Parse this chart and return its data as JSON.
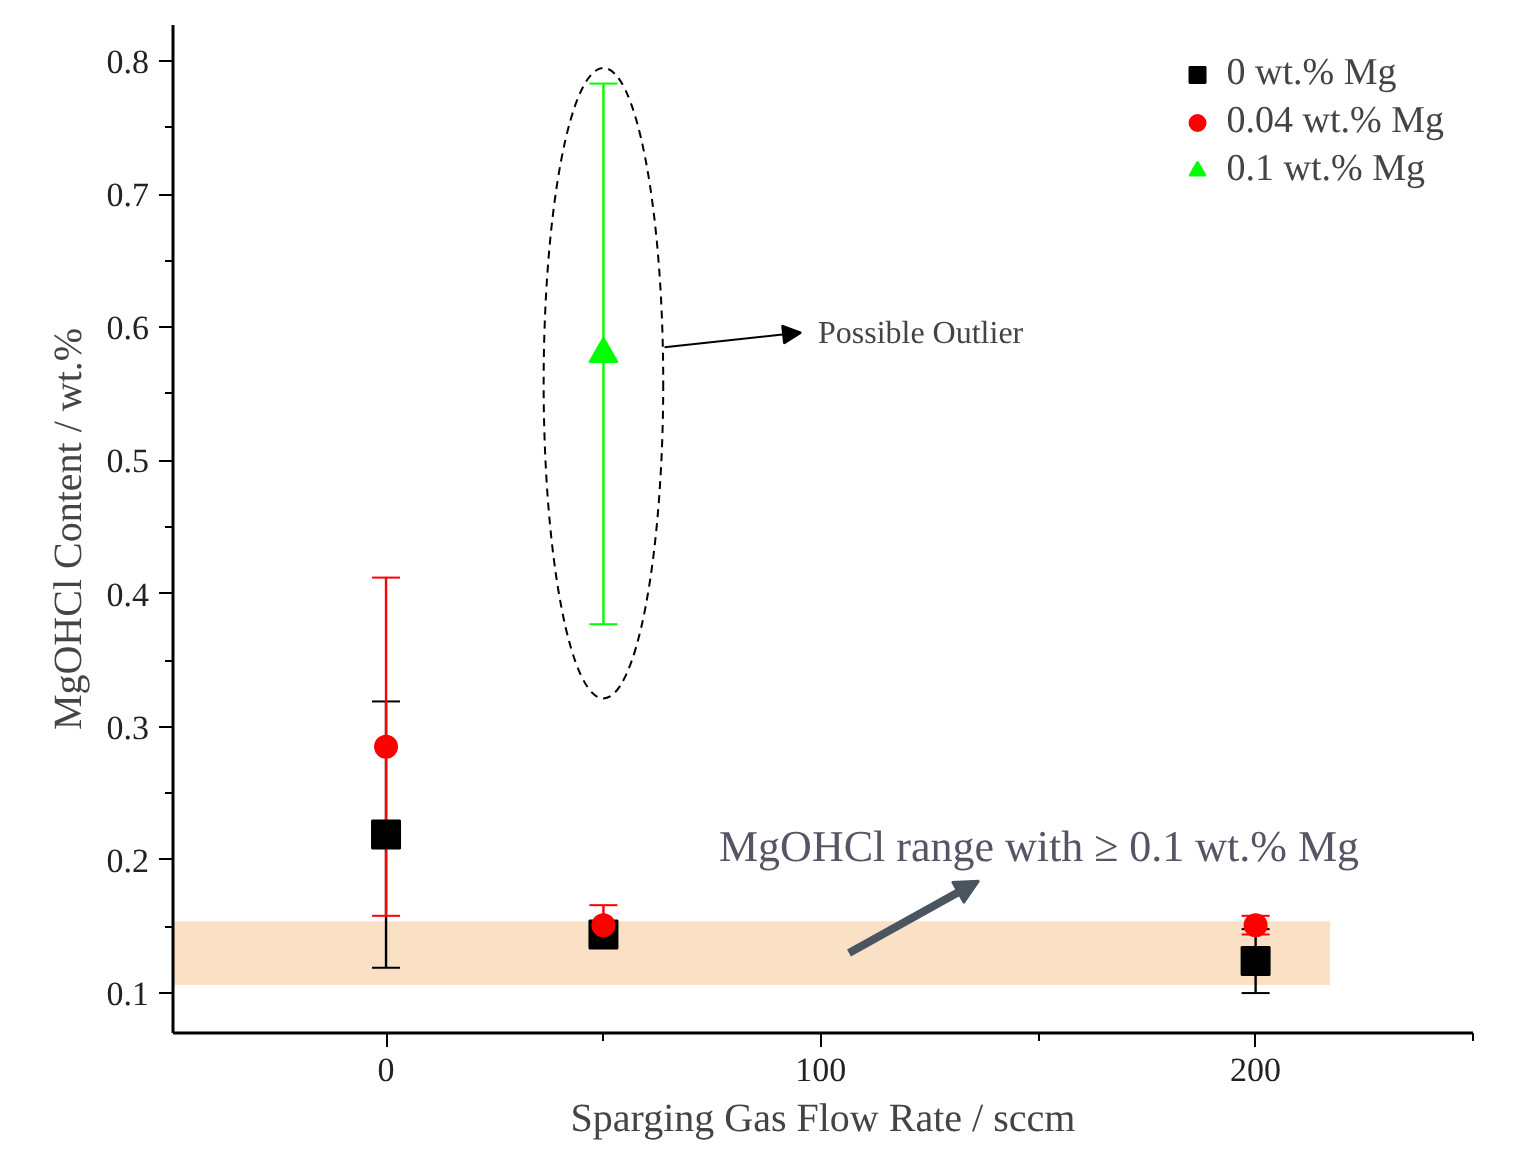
{
  "chart_data": {
    "type": "scatter",
    "xlabel": "Sparging Gas Flow Rate / sccm",
    "ylabel": "MgOHCl Content / wt.%",
    "series": [
      {
        "name": "0 wt.% Mg",
        "color": "#000000",
        "marker": "square",
        "x": [
          0,
          50,
          200
        ],
        "values": [
          0.219,
          0.144,
          0.124
        ],
        "errors": [
          0.1,
          0.01,
          0.024
        ]
      },
      {
        "name": "0.04 wt.% Mg",
        "color": "#ff0000",
        "marker": "circle",
        "x": [
          0,
          50,
          200
        ],
        "values": [
          0.285,
          0.151,
          0.151
        ],
        "errors": [
          0.127,
          0.015,
          0.007
        ]
      },
      {
        "name": "0.1 wt.% Mg",
        "color": "#00ff00",
        "marker": "triangle",
        "x": [
          50
        ],
        "values": [
          0.58
        ],
        "errors": [
          0.203
        ]
      }
    ],
    "xlim": [
      -49,
      250
    ],
    "ylim": [
      0.07,
      0.827
    ],
    "xticks": [
      0,
      100,
      200
    ],
    "yticks": [
      0.1,
      0.2,
      0.3,
      0.4,
      0.5,
      0.6,
      0.7,
      0.8
    ],
    "bands": [
      {
        "axis": "y",
        "from": 0.106,
        "to": 0.154,
        "label": "MgOHCl range with ≥ 0.1 wt.% Mg",
        "color": "#fae1c6"
      }
    ],
    "annotations": [
      "Possible Outlier"
    ],
    "legend": "top right",
    "grid": false
  }
}
